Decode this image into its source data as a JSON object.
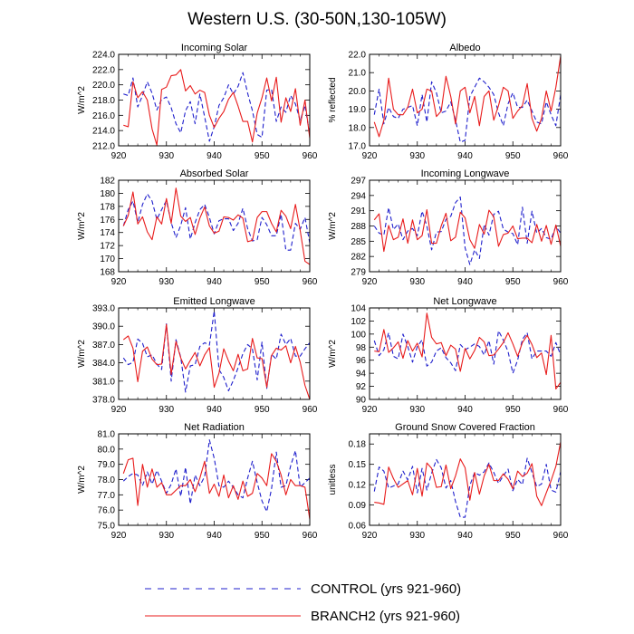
{
  "main_title": "Western U.S. (30-50N,130-105W)",
  "colors": {
    "control": "#1f1fcc",
    "branch": "#e81c1c"
  },
  "legend": {
    "control_label": "CONTROL (yrs 921-960)",
    "branch_label": "BRANCH2 (yrs 921-960)"
  },
  "chart_data": [
    {
      "type": "line",
      "title": "Incoming Solar",
      "xlabel": "",
      "ylabel": "W/m^2",
      "xlim": [
        920,
        960
      ],
      "ylim": [
        212,
        224
      ],
      "xticks": [
        920,
        930,
        940,
        950,
        960
      ],
      "yticks": [
        212.0,
        214.0,
        216.0,
        218.0,
        220.0,
        222.0,
        224.0
      ],
      "ydecimals": 1,
      "series": [
        {
          "name": "CONTROL",
          "style": "dashed",
          "x_start": 921,
          "values": [
            218.8,
            218.6,
            220.9,
            217.1,
            218.6,
            220.4,
            218.9,
            216.7,
            218.1,
            218.4,
            217.0,
            214.9,
            213.7,
            216.6,
            217.8,
            214.9,
            218.8,
            215.8,
            212.6,
            214.5,
            217.3,
            218.3,
            220.0,
            218.8,
            219.8,
            221.6,
            218.9,
            216.6,
            213.5,
            213.1,
            219.3,
            219.4,
            215.2,
            217.1,
            216.4,
            218.6,
            217.5,
            215.3,
            217.3,
            213.4
          ]
        },
        {
          "name": "BRANCH2",
          "style": "solid",
          "x_start": 921,
          "values": [
            214.7,
            214.5,
            220.4,
            218.3,
            219.1,
            218.0,
            214.2,
            212.1,
            219.4,
            219.7,
            221.2,
            221.3,
            222.0,
            219.2,
            219.9,
            218.8,
            219.3,
            219.0,
            216.0,
            214.4,
            215.6,
            216.5,
            218.1,
            219.0,
            217.2,
            215.2,
            215.2,
            212.5,
            216.3,
            218.3,
            220.9,
            217.9,
            221.0,
            215.1,
            218.3,
            216.5,
            219.5,
            214.7,
            218.0,
            213.0
          ]
        }
      ]
    },
    {
      "type": "line",
      "title": "Albedo",
      "xlabel": "",
      "ylabel": "% reflected",
      "xlim": [
        920,
        960
      ],
      "ylim": [
        17,
        22
      ],
      "xticks": [
        920,
        930,
        940,
        950,
        960
      ],
      "yticks": [
        17.0,
        18.0,
        19.0,
        20.0,
        21.0,
        22.0
      ],
      "ydecimals": 1,
      "series": [
        {
          "name": "CONTROL",
          "style": "dashed",
          "x_start": 921,
          "values": [
            18.7,
            20.1,
            18.2,
            19.1,
            18.6,
            18.5,
            19.0,
            19.1,
            19.2,
            18.1,
            19.8,
            18.3,
            20.5,
            19.9,
            18.8,
            18.9,
            19.4,
            18.4,
            17.2,
            17.3,
            19.7,
            20.2,
            20.7,
            20.5,
            20.2,
            19.8,
            18.8,
            18.1,
            19.3,
            19.9,
            19.1,
            19.1,
            19.5,
            18.9,
            18.3,
            18.2,
            19.4,
            18.7,
            18.1,
            19.8
          ]
        },
        {
          "name": "BRANCH2",
          "style": "solid",
          "x_start": 921,
          "values": [
            18.3,
            17.5,
            18.4,
            20.7,
            19.0,
            18.7,
            18.7,
            19.1,
            20.1,
            18.8,
            19.0,
            20.1,
            20.0,
            18.6,
            18.9,
            20.8,
            19.7,
            18.2,
            20.0,
            20.2,
            18.8,
            19.7,
            18.1,
            19.7,
            20.0,
            18.4,
            19.2,
            20.2,
            20.0,
            18.5,
            18.9,
            19.2,
            20.4,
            18.5,
            17.8,
            18.5,
            20.0,
            18.9,
            20.2,
            21.9
          ]
        }
      ]
    },
    {
      "type": "line",
      "title": "Absorbed Solar",
      "xlabel": "",
      "ylabel": "W/m^2",
      "xlim": [
        920,
        960
      ],
      "ylim": [
        168,
        182
      ],
      "xticks": [
        920,
        930,
        940,
        950,
        960
      ],
      "yticks": [
        168,
        170,
        172,
        174,
        176,
        178,
        180,
        182
      ],
      "ydecimals": 0,
      "series": [
        {
          "name": "CONTROL",
          "style": "dashed",
          "x_start": 921,
          "values": [
            175.0,
            177.5,
            178.8,
            175.5,
            178.3,
            179.9,
            178.8,
            176.0,
            177.5,
            178.9,
            175.5,
            173.2,
            175.1,
            177.8,
            173.0,
            175.5,
            177.5,
            178.3,
            176.3,
            173.8,
            175.8,
            176.1,
            176.1,
            174.3,
            175.4,
            177.7,
            174.6,
            172.7,
            172.9,
            176.3,
            175.2,
            173.5,
            173.5,
            176.8,
            171.3,
            171.3,
            175.4,
            174.5,
            176.3,
            172.4
          ]
        },
        {
          "name": "BRANCH2",
          "style": "solid",
          "x_start": 921,
          "values": [
            175.0,
            176.6,
            180.2,
            175.3,
            176.4,
            174.1,
            172.9,
            176.4,
            175.3,
            179.2,
            175.4,
            180.8,
            176.5,
            175.7,
            176.3,
            173.7,
            176.2,
            177.9,
            175.0,
            173.9,
            174.2,
            176.4,
            176.3,
            175.9,
            176.7,
            176.2,
            172.6,
            172.8,
            176.3,
            177.2,
            177.2,
            175.4,
            174.1,
            177.4,
            176.5,
            174.6,
            178.3,
            174.3,
            169.6,
            169.1
          ]
        }
      ]
    },
    {
      "type": "line",
      "title": "Incoming Longwave",
      "xlabel": "",
      "ylabel": "W/m^2",
      "xlim": [
        920,
        960
      ],
      "ylim": [
        279,
        297
      ],
      "xticks": [
        920,
        930,
        940,
        950,
        960
      ],
      "yticks": [
        279,
        282,
        285,
        288,
        291,
        294,
        297
      ],
      "ydecimals": 0,
      "series": [
        {
          "name": "CONTROL",
          "style": "dashed",
          "x_start": 921,
          "values": [
            288.0,
            286.6,
            286.2,
            291.6,
            287.3,
            288.4,
            285.3,
            287.0,
            287.5,
            286.1,
            290.9,
            288.0,
            283.3,
            286.8,
            286.9,
            289.3,
            289.9,
            292.6,
            293.7,
            283.7,
            280.4,
            283.3,
            281.6,
            288.3,
            286.2,
            290.3,
            290.9,
            287.4,
            286.8,
            286.5,
            284.3,
            291.7,
            284.6,
            290.9,
            286.6,
            287.5,
            285.7,
            285.4,
            287.9,
            286.6
          ]
        },
        {
          "name": "BRANCH2",
          "style": "solid",
          "x_start": 921,
          "values": [
            289.2,
            290.4,
            283.0,
            288.1,
            285.3,
            285.8,
            289.4,
            284.6,
            289.2,
            285.3,
            286.1,
            291.2,
            284.6,
            284.6,
            288.0,
            290.5,
            285.1,
            285.8,
            290.7,
            289.6,
            285.3,
            283.6,
            288.3,
            286.4,
            291.1,
            289.8,
            284.0,
            286.3,
            286.6,
            288.0,
            285.5,
            285.6,
            285.6,
            284.7,
            288.3,
            285.0,
            288.1,
            284.4,
            288.2,
            284.0
          ]
        }
      ]
    },
    {
      "type": "line",
      "title": "Emitted Longwave",
      "xlabel": "",
      "ylabel": "W/m^2",
      "xlim": [
        920,
        960
      ],
      "ylim": [
        378,
        393
      ],
      "xticks": [
        920,
        930,
        940,
        950,
        960
      ],
      "yticks": [
        378.0,
        381.0,
        384.0,
        387.0,
        390.0,
        393.0
      ],
      "ydecimals": 1,
      "series": [
        {
          "name": "CONTROL",
          "style": "dashed",
          "x_start": 921,
          "values": [
            384.8,
            383.7,
            384.1,
            387.9,
            387.2,
            385.0,
            385.3,
            383.8,
            382.9,
            390.4,
            381.0,
            387.8,
            384.9,
            379.2,
            383.5,
            383.7,
            386.7,
            387.3,
            386.9,
            392.5,
            382.9,
            381.6,
            379.4,
            381.1,
            383.2,
            385.5,
            387.0,
            386.3,
            381.2,
            387.4,
            379.8,
            385.4,
            384.6,
            388.7,
            387.0,
            388.0,
            385.1,
            385.1,
            386.3,
            387.3
          ]
        },
        {
          "name": "BRANCH2",
          "style": "solid",
          "x_start": 921,
          "values": [
            387.8,
            388.4,
            386.4,
            380.9,
            385.9,
            386.6,
            384.6,
            383.7,
            383.8,
            390.3,
            382.1,
            387.5,
            384.8,
            383.0,
            384.4,
            385.7,
            383.5,
            385.3,
            386.5,
            380.0,
            382.3,
            386.3,
            384.3,
            382.7,
            385.4,
            382.7,
            383.0,
            388.0,
            384.8,
            384.7,
            380.0,
            385.2,
            386.4,
            386.1,
            386.8,
            384.0,
            386.7,
            384.1,
            380.3,
            378.0
          ]
        }
      ]
    },
    {
      "type": "line",
      "title": "Net Longwave",
      "xlabel": "",
      "ylabel": "W/m^2",
      "xlim": [
        920,
        960
      ],
      "ylim": [
        90,
        104
      ],
      "xticks": [
        920,
        930,
        940,
        950,
        960
      ],
      "yticks": [
        90,
        92,
        94,
        96,
        98,
        100,
        102,
        104
      ],
      "ydecimals": 0,
      "series": [
        {
          "name": "CONTROL",
          "style": "dashed",
          "x_start": 921,
          "values": [
            99.0,
            96.7,
            97.6,
            100.2,
            96.6,
            96.2,
            100.0,
            98.1,
            95.7,
            98.1,
            99.1,
            95.1,
            95.7,
            97.4,
            97.9,
            96.4,
            95.6,
            94.4,
            98.4,
            97.6,
            98.0,
            98.5,
            98.1,
            96.8,
            99.0,
            95.4,
            100.5,
            99.1,
            97.3,
            94.0,
            96.0,
            99.2,
            100.2,
            96.2,
            97.4,
            97.4,
            97.4,
            96.6,
            98.7,
            96.8
          ]
        },
        {
          "name": "BRANCH2",
          "style": "solid",
          "x_start": 921,
          "values": [
            97.4,
            97.3,
            100.7,
            97.2,
            97.9,
            98.8,
            96.3,
            99.0,
            97.4,
            98.6,
            96.5,
            103.2,
            99.5,
            98.5,
            98.7,
            96.7,
            98.3,
            97.7,
            94.3,
            97.8,
            96.2,
            97.5,
            99.5,
            98.8,
            96.7,
            96.8,
            97.7,
            98.7,
            100.2,
            98.5,
            96.6,
            98.7,
            99.8,
            98.4,
            96.4,
            97.1,
            93.8,
            99.8,
            91.6,
            92.6
          ]
        }
      ]
    },
    {
      "type": "line",
      "title": "Net Radiation",
      "xlabel": "",
      "ylabel": "W/m^2",
      "xlim": [
        920,
        960
      ],
      "ylim": [
        75,
        81
      ],
      "xticks": [
        920,
        930,
        940,
        950,
        960
      ],
      "yticks": [
        75.0,
        76.0,
        77.0,
        78.0,
        79.0,
        80.0,
        81.0
      ],
      "ydecimals": 1,
      "series": [
        {
          "name": "CONTROL",
          "style": "dashed",
          "x_start": 921,
          "values": [
            77.9,
            78.2,
            78.4,
            78.3,
            77.6,
            78.5,
            77.7,
            78.6,
            77.9,
            77.1,
            77.7,
            78.7,
            76.9,
            78.8,
            76.4,
            78.3,
            77.6,
            78.2,
            80.6,
            79.4,
            77.6,
            77.5,
            77.9,
            77.5,
            77.0,
            76.8,
            78.1,
            79.2,
            77.8,
            76.6,
            75.9,
            77.4,
            79.8,
            77.5,
            77.6,
            78.9,
            79.9,
            77.5,
            77.8,
            78.1
          ]
        },
        {
          "name": "BRANCH2",
          "style": "solid",
          "x_start": 921,
          "values": [
            78.4,
            79.3,
            79.4,
            76.3,
            79.0,
            77.5,
            78.7,
            77.5,
            77.8,
            77.0,
            77.0,
            77.3,
            77.6,
            77.6,
            78.0,
            77.2,
            78.1,
            79.2,
            77.1,
            77.7,
            76.9,
            78.3,
            76.8,
            77.6,
            76.7,
            77.9,
            76.9,
            77.1,
            78.4,
            78.1,
            77.6,
            79.7,
            79.2,
            78.3,
            77.0,
            78.0,
            77.6,
            77.6,
            77.5,
            75.4
          ]
        }
      ]
    },
    {
      "type": "line",
      "title": "Ground Snow Covered Fraction",
      "xlabel": "",
      "ylabel": "unitless",
      "xlim": [
        920,
        960
      ],
      "ylim": [
        0.06,
        0.195
      ],
      "xticks": [
        920,
        930,
        940,
        950,
        960
      ],
      "yticks": [
        0.06,
        0.09,
        0.12,
        0.15,
        0.18
      ],
      "ydecimals": 2,
      "series": [
        {
          "name": "CONTROL",
          "style": "dashed",
          "x_start": 921,
          "values": [
            0.11,
            0.146,
            0.14,
            0.115,
            0.118,
            0.121,
            0.14,
            0.127,
            0.147,
            0.108,
            0.144,
            0.112,
            0.137,
            0.157,
            0.145,
            0.115,
            0.126,
            0.095,
            0.072,
            0.072,
            0.119,
            0.138,
            0.134,
            0.139,
            0.152,
            0.138,
            0.122,
            0.133,
            0.143,
            0.111,
            0.128,
            0.12,
            0.159,
            0.138,
            0.117,
            0.121,
            0.15,
            0.112,
            0.109,
            0.139
          ]
        },
        {
          "name": "BRANCH2",
          "style": "solid",
          "x_start": 921,
          "values": [
            0.094,
            0.093,
            0.091,
            0.146,
            0.129,
            0.116,
            0.121,
            0.126,
            0.105,
            0.144,
            0.103,
            0.152,
            0.144,
            0.116,
            0.117,
            0.149,
            0.114,
            0.133,
            0.158,
            0.145,
            0.097,
            0.138,
            0.106,
            0.133,
            0.15,
            0.126,
            0.126,
            0.136,
            0.128,
            0.114,
            0.14,
            0.132,
            0.137,
            0.151,
            0.103,
            0.089,
            0.108,
            0.126,
            0.147,
            0.183
          ]
        }
      ]
    }
  ]
}
